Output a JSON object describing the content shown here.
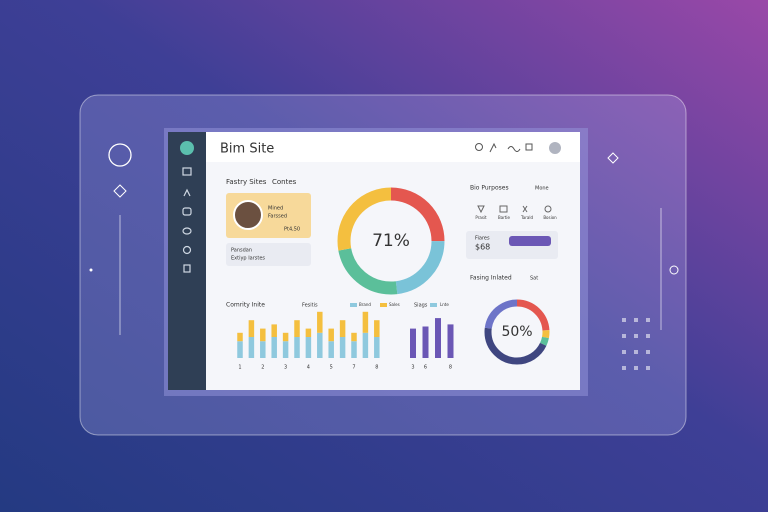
{
  "header": {
    "title": "Bim Site"
  },
  "left_panel": {
    "title": "Fastry Sites",
    "tab": "Contes",
    "card_name": "Mined",
    "card_text": "Farssed",
    "card_amount": "Pt4,50",
    "note_title": "Pansdan",
    "note_text": "Extiyp Iarstes"
  },
  "main_donut": {
    "label": "71%",
    "segments": [
      {
        "color": "#e4574f",
        "value": 25
      },
      {
        "color": "#7ac3d8",
        "value": 23
      },
      {
        "color": "#5bbf9a",
        "value": 24
      },
      {
        "color": "#f4bf3f",
        "value": 28
      }
    ]
  },
  "right_panel": {
    "title": "Bio Purposes",
    "dropdown": "Mone",
    "icons": [
      "Prasit",
      "Bartie",
      "Tarald",
      "Bosion"
    ],
    "balance_label": "Fiares",
    "balance": "$68",
    "chart_title": "Fasing Inlated",
    "chart_dropdown": "Sat"
  },
  "small_donut": {
    "label": "50%",
    "segments": [
      {
        "color": "#e4574f",
        "value": 24
      },
      {
        "color": "#f4bf3f",
        "value": 4
      },
      {
        "color": "#5bbf9a",
        "value": 4
      },
      {
        "color": "#3f4680",
        "value": 45
      },
      {
        "color": "#6d74c8",
        "value": 23
      }
    ]
  },
  "bar_chart": {
    "type": "bar",
    "title": "Comrity Inite",
    "legend_title": "Fesitis",
    "categories": [
      "1",
      null,
      "2",
      null,
      "3",
      null,
      "4",
      null,
      "5",
      null,
      "7",
      null,
      "8"
    ],
    "series": [
      {
        "name": "Brand",
        "color": "#8fc9de",
        "values": [
          4,
          5,
          4,
          5,
          4,
          5,
          5,
          6,
          4,
          5,
          4,
          6,
          5
        ]
      },
      {
        "name": "Sales",
        "color": "#f4bf3f",
        "values": [
          2,
          4,
          3,
          3,
          2,
          4,
          2,
          5,
          3,
          4,
          2,
          5,
          4
        ]
      }
    ],
    "ylim": [
      0,
      10
    ]
  },
  "purple_chart": {
    "type": "bar",
    "title": "Siags",
    "legend": "Lnte",
    "categories": [
      "3",
      "6",
      null,
      "8"
    ],
    "color": "#6b57b5",
    "values": [
      7,
      7.5,
      9.5,
      8
    ],
    "ylim": [
      0,
      10
    ]
  }
}
